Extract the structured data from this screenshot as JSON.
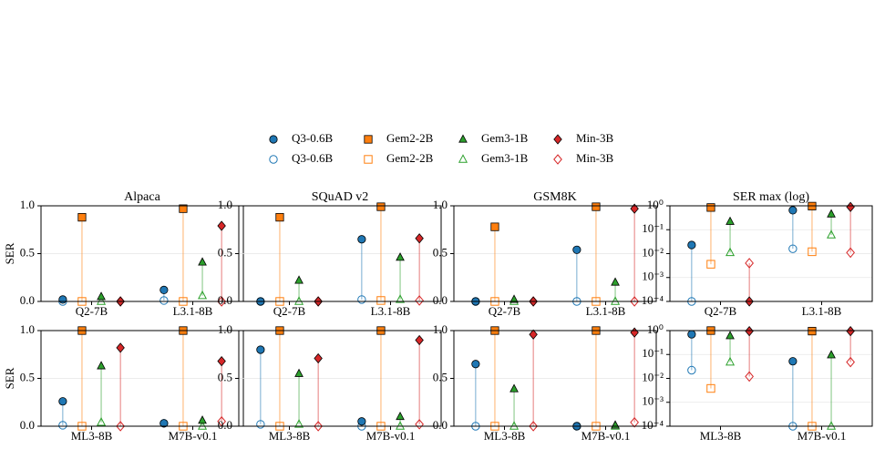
{
  "legend": "upper center",
  "chart_data": [
    {
      "type": "lollipop",
      "title": "Alpaca",
      "ylabel": "SER",
      "categories": [
        "Q2-7B",
        "L3.1-8B"
      ],
      "ylim": [
        0,
        1
      ],
      "yticks": [
        {
          "value": 0,
          "label": "0.0"
        },
        {
          "value": 0.5,
          "label": "0.5"
        },
        {
          "value": 1,
          "label": "1.0"
        }
      ],
      "grid": true,
      "log": false,
      "series": [
        {
          "name": "Q3-0.6B",
          "color": "#1f77b4",
          "marker": "circle",
          "filled": true,
          "values": [
            0.02,
            0.12
          ]
        },
        {
          "name": "Q3-0.6B",
          "color": "#1f77b4",
          "marker": "circle",
          "filled": false,
          "values": [
            0,
            0.01
          ]
        },
        {
          "name": "Gem2-2B",
          "color": "#ff7f0e",
          "marker": "square",
          "filled": true,
          "values": [
            0.88,
            0.97
          ]
        },
        {
          "name": "Gem2-2B",
          "color": "#ff7f0e",
          "marker": "square",
          "filled": false,
          "values": [
            0,
            0
          ]
        },
        {
          "name": "Gem3-1B",
          "color": "#2ca02c",
          "marker": "triangle",
          "filled": true,
          "values": [
            0.05,
            0.41
          ]
        },
        {
          "name": "Gem3-1B",
          "color": "#2ca02c",
          "marker": "triangle",
          "filled": false,
          "values": [
            0,
            0.06
          ]
        },
        {
          "name": "Min-3B",
          "color": "#d62728",
          "marker": "diamond",
          "filled": true,
          "values": [
            0,
            0.79
          ]
        },
        {
          "name": "Min-3B",
          "color": "#d62728",
          "marker": "diamond",
          "filled": false,
          "values": [
            0,
            0
          ]
        }
      ]
    },
    {
      "type": "lollipop",
      "title": "SQuAD v2",
      "categories": [
        "Q2-7B",
        "L3.1-8B"
      ],
      "ylim": [
        0,
        1
      ],
      "yticks": [
        {
          "value": 0,
          "label": "0.0"
        },
        {
          "value": 0.5,
          "label": "0.5"
        },
        {
          "value": 1,
          "label": "1.0"
        }
      ],
      "grid": true,
      "log": false,
      "series": [
        {
          "name": "Q3-0.6B",
          "color": "#1f77b4",
          "marker": "circle",
          "filled": true,
          "values": [
            0,
            0.65
          ]
        },
        {
          "name": "Q3-0.6B",
          "color": "#1f77b4",
          "marker": "circle",
          "filled": false,
          "values": [
            0,
            0.02
          ]
        },
        {
          "name": "Gem2-2B",
          "color": "#ff7f0e",
          "marker": "square",
          "filled": true,
          "values": [
            0.88,
            0.99
          ]
        },
        {
          "name": "Gem2-2B",
          "color": "#ff7f0e",
          "marker": "square",
          "filled": false,
          "values": [
            0,
            0.01
          ]
        },
        {
          "name": "Gem3-1B",
          "color": "#2ca02c",
          "marker": "triangle",
          "filled": true,
          "values": [
            0.22,
            0.46
          ]
        },
        {
          "name": "Gem3-1B",
          "color": "#2ca02c",
          "marker": "triangle",
          "filled": false,
          "values": [
            0,
            0.02
          ]
        },
        {
          "name": "Min-3B",
          "color": "#d62728",
          "marker": "diamond",
          "filled": true,
          "values": [
            0,
            0.66
          ]
        },
        {
          "name": "Min-3B",
          "color": "#d62728",
          "marker": "diamond",
          "filled": false,
          "values": [
            0,
            0.01
          ]
        }
      ]
    },
    {
      "type": "lollipop",
      "title": "GSM8K",
      "categories": [
        "Q2-7B",
        "L3.1-8B"
      ],
      "ylim": [
        0,
        1
      ],
      "yticks": [
        {
          "value": 0,
          "label": "0.0"
        },
        {
          "value": 0.5,
          "label": "0.5"
        },
        {
          "value": 1,
          "label": "1.0"
        }
      ],
      "grid": true,
      "log": false,
      "series": [
        {
          "name": "Q3-0.6B",
          "color": "#1f77b4",
          "marker": "circle",
          "filled": true,
          "values": [
            0,
            0.54
          ]
        },
        {
          "name": "Q3-0.6B",
          "color": "#1f77b4",
          "marker": "circle",
          "filled": false,
          "values": [
            0,
            0
          ]
        },
        {
          "name": "Gem2-2B",
          "color": "#ff7f0e",
          "marker": "square",
          "filled": true,
          "values": [
            0.78,
            0.99
          ]
        },
        {
          "name": "Gem2-2B",
          "color": "#ff7f0e",
          "marker": "square",
          "filled": false,
          "values": [
            0,
            0
          ]
        },
        {
          "name": "Gem3-1B",
          "color": "#2ca02c",
          "marker": "triangle",
          "filled": true,
          "values": [
            0.02,
            0.2
          ]
        },
        {
          "name": "Gem3-1B",
          "color": "#2ca02c",
          "marker": "triangle",
          "filled": false,
          "values": [
            0,
            0
          ]
        },
        {
          "name": "Min-3B",
          "color": "#d62728",
          "marker": "diamond",
          "filled": true,
          "values": [
            0,
            0.97
          ]
        },
        {
          "name": "Min-3B",
          "color": "#d62728",
          "marker": "diamond",
          "filled": false,
          "values": [
            0,
            0
          ]
        }
      ]
    },
    {
      "type": "lollipop",
      "title": "SER max (log)",
      "categories": [
        "Q2-7B",
        "L3.1-8B"
      ],
      "ylim": [
        0.0001,
        1
      ],
      "yticks": [
        {
          "value": 0.0001,
          "label": "10⁻⁴"
        },
        {
          "value": 0.001,
          "label": "10⁻³"
        },
        {
          "value": 0.01,
          "label": "10⁻²"
        },
        {
          "value": 0.1,
          "label": "10⁻¹"
        },
        {
          "value": 1,
          "label": "10⁰"
        }
      ],
      "grid": true,
      "log": true,
      "series": [
        {
          "name": "Q3-0.6B",
          "color": "#1f77b4",
          "marker": "circle",
          "filled": true,
          "values": [
            0.023,
            0.65
          ]
        },
        {
          "name": "Q3-0.6B",
          "color": "#1f77b4",
          "marker": "circle",
          "filled": false,
          "values": [
            0.0001,
            0.016
          ]
        },
        {
          "name": "Gem2-2B",
          "color": "#ff7f0e",
          "marker": "square",
          "filled": true,
          "values": [
            0.85,
            0.97
          ]
        },
        {
          "name": "Gem2-2B",
          "color": "#ff7f0e",
          "marker": "square",
          "filled": false,
          "values": [
            0.0036,
            0.012
          ]
        },
        {
          "name": "Gem3-1B",
          "color": "#2ca02c",
          "marker": "triangle",
          "filled": true,
          "values": [
            0.22,
            0.45
          ]
        },
        {
          "name": "Gem3-1B",
          "color": "#2ca02c",
          "marker": "triangle",
          "filled": false,
          "values": [
            0.011,
            0.06
          ]
        },
        {
          "name": "Min-3B",
          "color": "#d62728",
          "marker": "diamond",
          "filled": true,
          "values": [
            0.0001,
            0.9
          ]
        },
        {
          "name": "Min-3B",
          "color": "#d62728",
          "marker": "diamond",
          "filled": false,
          "values": [
            0.004,
            0.011
          ]
        }
      ]
    },
    {
      "type": "lollipop",
      "ylabel": "SER",
      "categories": [
        "ML3-8B",
        "M7B-v0.1"
      ],
      "ylim": [
        0,
        1
      ],
      "yticks": [
        {
          "value": 0,
          "label": "0.0"
        },
        {
          "value": 0.5,
          "label": "0.5"
        },
        {
          "value": 1,
          "label": "1.0"
        }
      ],
      "grid": true,
      "log": false,
      "series": [
        {
          "name": "Q3-0.6B",
          "color": "#1f77b4",
          "marker": "circle",
          "filled": true,
          "values": [
            0.26,
            0.03
          ]
        },
        {
          "name": "Q3-0.6B",
          "color": "#1f77b4",
          "marker": "circle",
          "filled": false,
          "values": [
            0.01,
            0.03
          ]
        },
        {
          "name": "Gem2-2B",
          "color": "#ff7f0e",
          "marker": "square",
          "filled": true,
          "values": [
            1,
            1
          ]
        },
        {
          "name": "Gem2-2B",
          "color": "#ff7f0e",
          "marker": "square",
          "filled": false,
          "values": [
            0,
            0
          ]
        },
        {
          "name": "Gem3-1B",
          "color": "#2ca02c",
          "marker": "triangle",
          "filled": true,
          "values": [
            0.63,
            0.06
          ]
        },
        {
          "name": "Gem3-1B",
          "color": "#2ca02c",
          "marker": "triangle",
          "filled": false,
          "values": [
            0.04,
            0
          ]
        },
        {
          "name": "Min-3B",
          "color": "#d62728",
          "marker": "diamond",
          "filled": true,
          "values": [
            0.82,
            0.68
          ]
        },
        {
          "name": "Min-3B",
          "color": "#d62728",
          "marker": "diamond",
          "filled": false,
          "values": [
            0,
            0.05
          ]
        }
      ]
    },
    {
      "type": "lollipop",
      "categories": [
        "ML3-8B",
        "M7B-v0.1"
      ],
      "ylim": [
        0,
        1
      ],
      "yticks": [
        {
          "value": 0,
          "label": "0.0"
        },
        {
          "value": 0.5,
          "label": "0.5"
        },
        {
          "value": 1,
          "label": "1.0"
        }
      ],
      "grid": true,
      "log": false,
      "series": [
        {
          "name": "Q3-0.6B",
          "color": "#1f77b4",
          "marker": "circle",
          "filled": true,
          "values": [
            0.8,
            0.05
          ]
        },
        {
          "name": "Q3-0.6B",
          "color": "#1f77b4",
          "marker": "circle",
          "filled": false,
          "values": [
            0.02,
            0
          ]
        },
        {
          "name": "Gem2-2B",
          "color": "#ff7f0e",
          "marker": "square",
          "filled": true,
          "values": [
            1,
            1
          ]
        },
        {
          "name": "Gem2-2B",
          "color": "#ff7f0e",
          "marker": "square",
          "filled": false,
          "values": [
            0,
            0
          ]
        },
        {
          "name": "Gem3-1B",
          "color": "#2ca02c",
          "marker": "triangle",
          "filled": true,
          "values": [
            0.55,
            0.1
          ]
        },
        {
          "name": "Gem3-1B",
          "color": "#2ca02c",
          "marker": "triangle",
          "filled": false,
          "values": [
            0.02,
            0
          ]
        },
        {
          "name": "Min-3B",
          "color": "#d62728",
          "marker": "diamond",
          "filled": true,
          "values": [
            0.71,
            0.9
          ]
        },
        {
          "name": "Min-3B",
          "color": "#d62728",
          "marker": "diamond",
          "filled": false,
          "values": [
            0,
            0.02
          ]
        }
      ]
    },
    {
      "type": "lollipop",
      "categories": [
        "ML3-8B",
        "M7B-v0.1"
      ],
      "ylim": [
        0,
        1
      ],
      "yticks": [
        {
          "value": 0,
          "label": "0.0"
        },
        {
          "value": 0.5,
          "label": "0.5"
        },
        {
          "value": 1,
          "label": "1.0"
        }
      ],
      "grid": true,
      "log": false,
      "series": [
        {
          "name": "Q3-0.6B",
          "color": "#1f77b4",
          "marker": "circle",
          "filled": true,
          "values": [
            0.65,
            0
          ]
        },
        {
          "name": "Q3-0.6B",
          "color": "#1f77b4",
          "marker": "circle",
          "filled": false,
          "values": [
            0,
            0
          ]
        },
        {
          "name": "Gem2-2B",
          "color": "#ff7f0e",
          "marker": "square",
          "filled": true,
          "values": [
            1,
            1
          ]
        },
        {
          "name": "Gem2-2B",
          "color": "#ff7f0e",
          "marker": "square",
          "filled": false,
          "values": [
            0,
            0
          ]
        },
        {
          "name": "Gem3-1B",
          "color": "#2ca02c",
          "marker": "triangle",
          "filled": true,
          "values": [
            0.39,
            0.01
          ]
        },
        {
          "name": "Gem3-1B",
          "color": "#2ca02c",
          "marker": "triangle",
          "filled": false,
          "values": [
            0,
            0
          ]
        },
        {
          "name": "Min-3B",
          "color": "#d62728",
          "marker": "diamond",
          "filled": true,
          "values": [
            0.96,
            0.98
          ]
        },
        {
          "name": "Min-3B",
          "color": "#d62728",
          "marker": "diamond",
          "filled": false,
          "values": [
            0,
            0.04
          ]
        }
      ]
    },
    {
      "type": "lollipop",
      "categories": [
        "ML3-8B",
        "M7B-v0.1"
      ],
      "ylim": [
        0.0001,
        1
      ],
      "yticks": [
        {
          "value": 0.0001,
          "label": "10⁻⁴"
        },
        {
          "value": 0.001,
          "label": "10⁻³"
        },
        {
          "value": 0.01,
          "label": "10⁻²"
        },
        {
          "value": 0.1,
          "label": "10⁻¹"
        },
        {
          "value": 1,
          "label": "10⁰"
        }
      ],
      "grid": true,
      "log": true,
      "series": [
        {
          "name": "Q3-0.6B",
          "color": "#1f77b4",
          "marker": "circle",
          "filled": true,
          "values": [
            0.7,
            0.052
          ]
        },
        {
          "name": "Q3-0.6B",
          "color": "#1f77b4",
          "marker": "circle",
          "filled": false,
          "values": [
            0.022,
            0.0001
          ]
        },
        {
          "name": "Gem2-2B",
          "color": "#ff7f0e",
          "marker": "square",
          "filled": true,
          "values": [
            1,
            0.95
          ]
        },
        {
          "name": "Gem2-2B",
          "color": "#ff7f0e",
          "marker": "square",
          "filled": false,
          "values": [
            0.0038,
            0.0001
          ]
        },
        {
          "name": "Gem3-1B",
          "color": "#2ca02c",
          "marker": "triangle",
          "filled": true,
          "values": [
            0.6,
            0.095
          ]
        },
        {
          "name": "Gem3-1B",
          "color": "#2ca02c",
          "marker": "triangle",
          "filled": false,
          "values": [
            0.048,
            0.0001
          ]
        },
        {
          "name": "Min-3B",
          "color": "#d62728",
          "marker": "diamond",
          "filled": true,
          "values": [
            0.95,
            0.95
          ]
        },
        {
          "name": "Min-3B",
          "color": "#d62728",
          "marker": "diamond",
          "filled": false,
          "values": [
            0.012,
            0.048
          ]
        }
      ]
    }
  ]
}
